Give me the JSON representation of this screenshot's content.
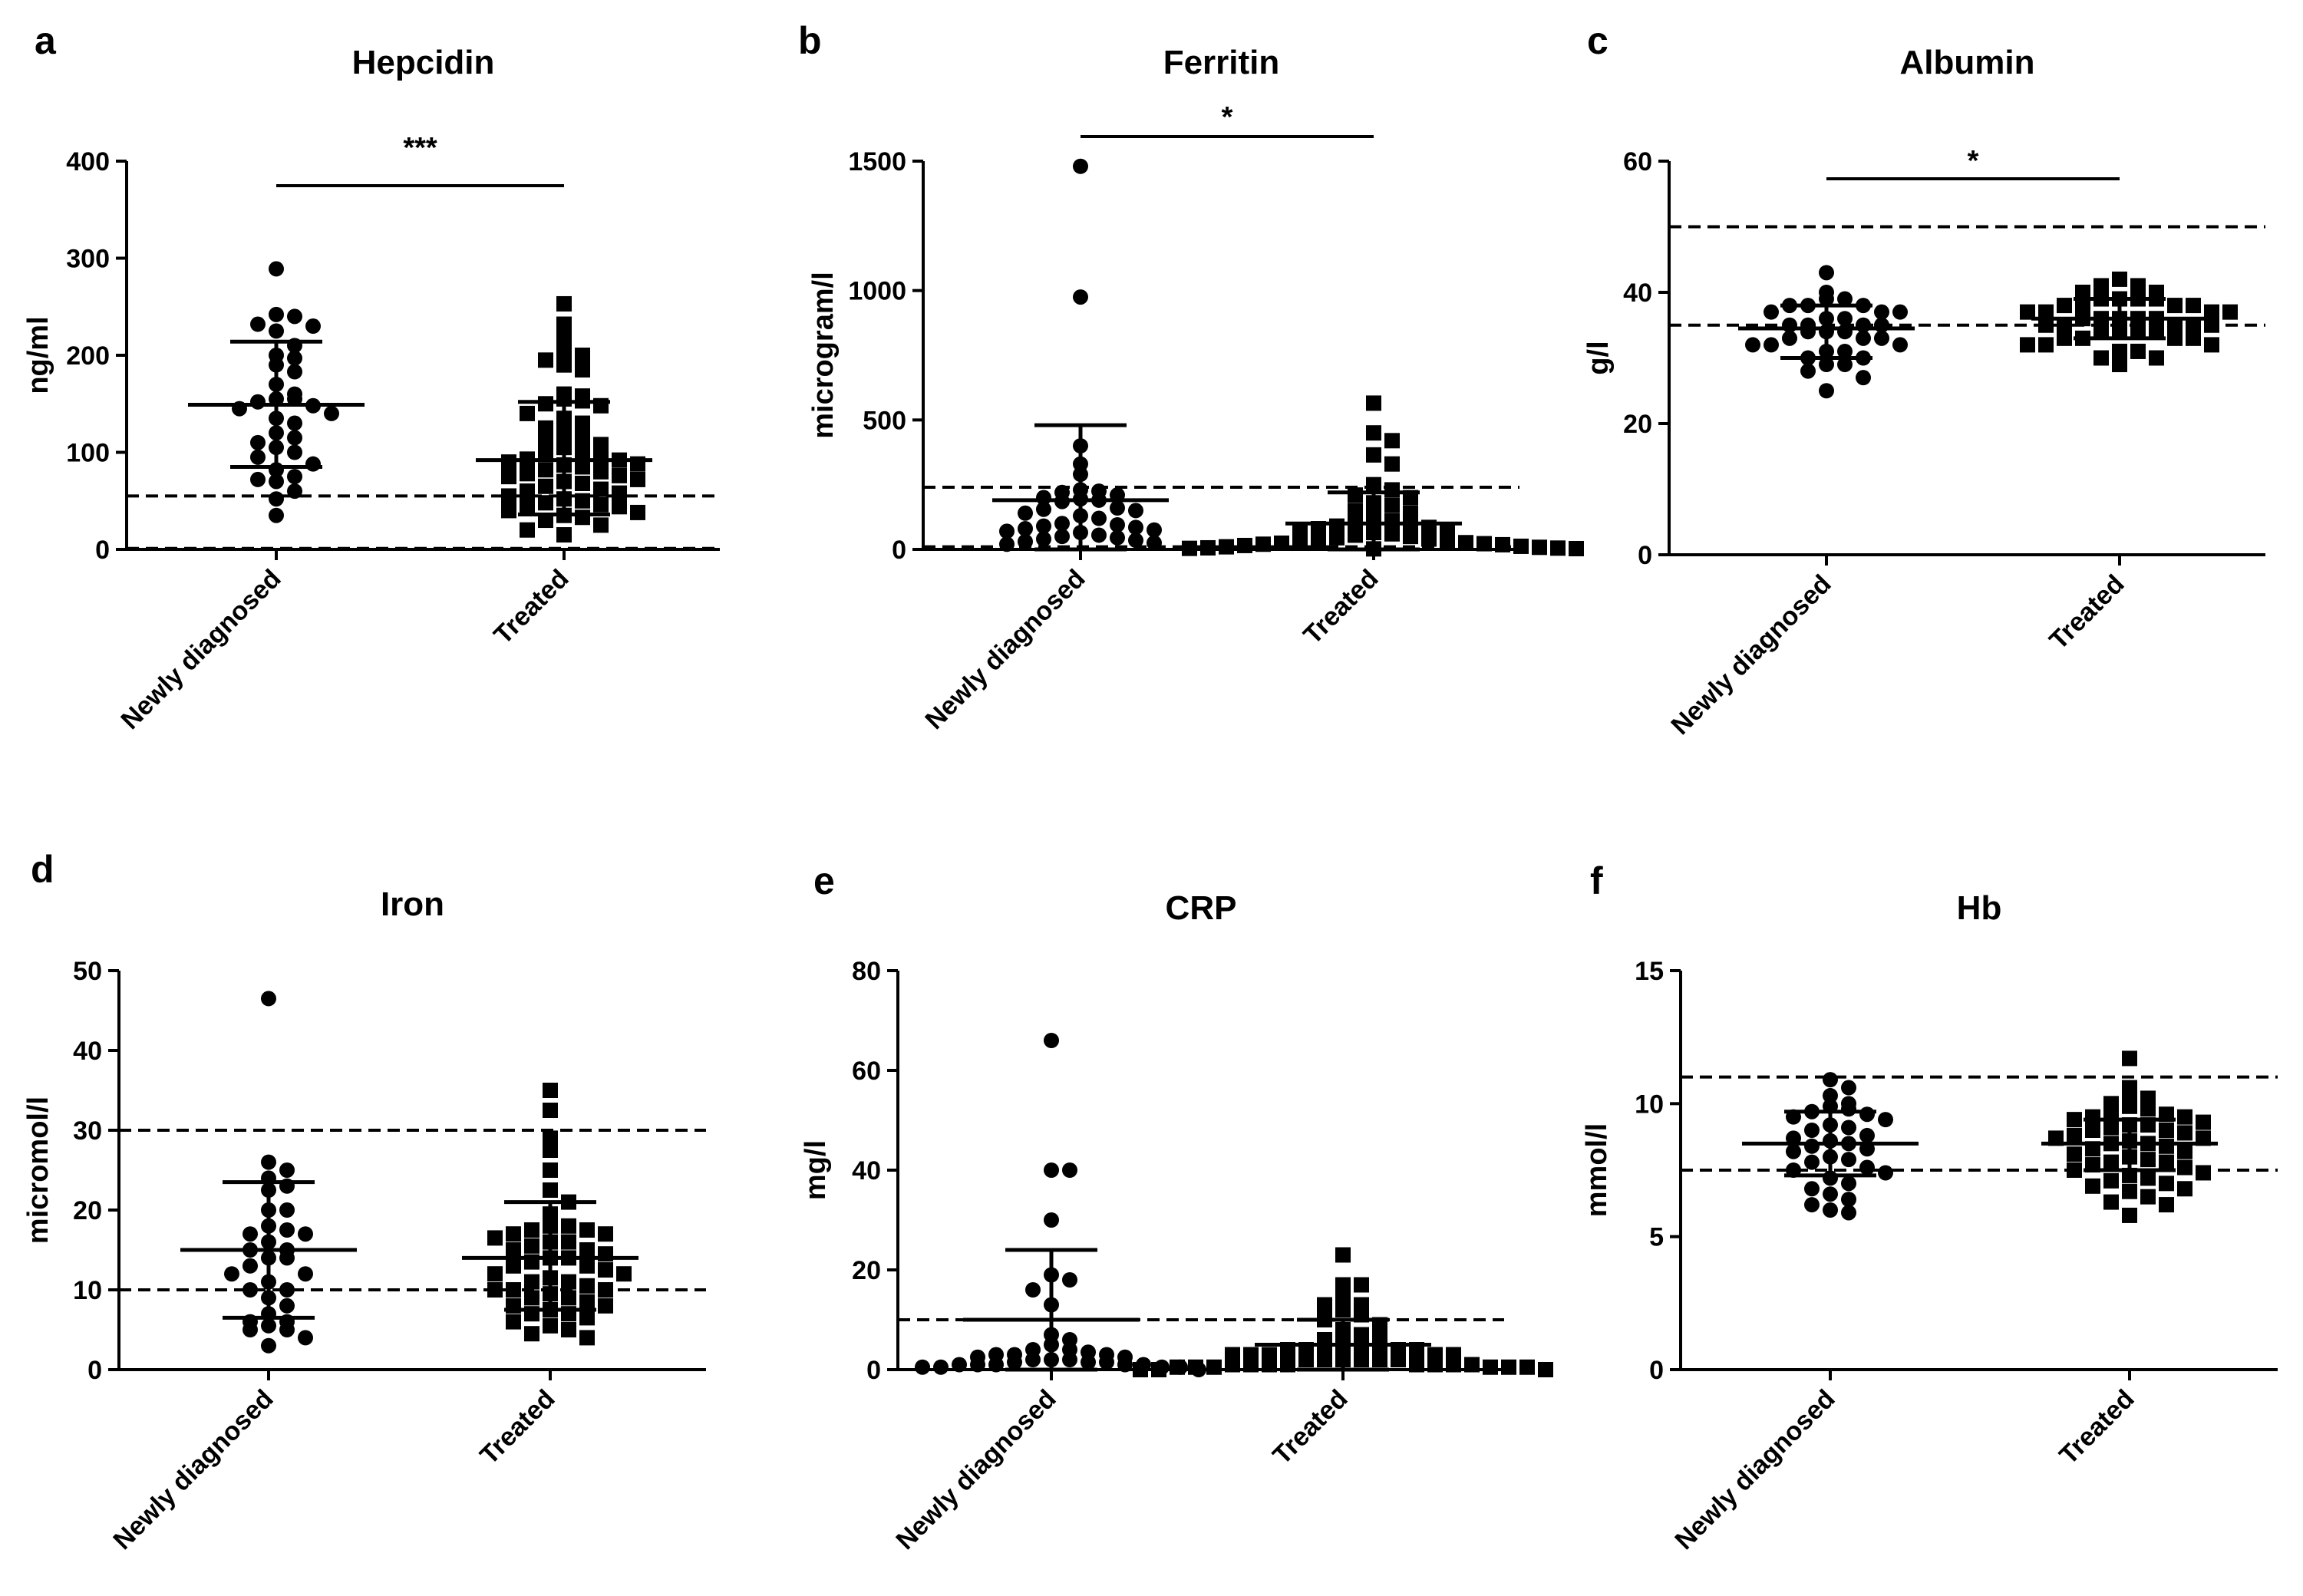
{
  "figure": {
    "colors": {
      "ink": "#000000",
      "background": "#ffffff"
    },
    "marker_shapes": {
      "group_1": "circle",
      "group_2": "square"
    }
  },
  "chart_data": [
    {
      "letter": "a",
      "type": "scatter",
      "title": "Hepcidin",
      "ylabel": "ng/ml",
      "ylim": [
        0,
        400
      ],
      "yticks": [
        0,
        100,
        200,
        300,
        400
      ],
      "categories": [
        "Newly diagnosed",
        "Treated"
      ],
      "reference_lines": [
        1,
        55
      ],
      "significance": "***",
      "groups": [
        {
          "name": "Newly diagnosed",
          "marker": "circle",
          "mean": 149,
          "sd_low": 85,
          "sd_high": 214,
          "values": [
            289,
            242,
            240,
            232,
            230,
            225,
            210,
            200,
            197,
            190,
            183,
            170,
            160,
            155,
            155,
            152,
            148,
            145,
            140,
            135,
            130,
            120,
            115,
            110,
            105,
            100,
            95,
            88,
            82,
            75,
            72,
            70,
            60,
            52,
            35
          ]
        },
        {
          "name": "Treated",
          "marker": "square",
          "mean": 92,
          "sd_low": 36,
          "sd_high": 152,
          "values": [
            253,
            232,
            220,
            205,
            200,
            195,
            190,
            185,
            160,
            158,
            155,
            153,
            150,
            148,
            140,
            135,
            130,
            125,
            120,
            115,
            110,
            108,
            105,
            100,
            98,
            95,
            93,
            92,
            90,
            88,
            87,
            85,
            82,
            80,
            78,
            76,
            75,
            72,
            70,
            68,
            65,
            62,
            60,
            58,
            55,
            52,
            50,
            48,
            46,
            45,
            44,
            40,
            38,
            35,
            33,
            30,
            25,
            20,
            15
          ]
        }
      ]
    },
    {
      "letter": "b",
      "type": "scatter",
      "title": "Ferritin",
      "ylabel": "microgram/l",
      "ylim": [
        0,
        1500
      ],
      "yticks": [
        0,
        500,
        1000,
        1500
      ],
      "categories": [
        "Newly diagnosed",
        "Treated"
      ],
      "reference_lines": [
        10,
        240
      ],
      "significance": "*",
      "groups": [
        {
          "name": "Newly diagnosed",
          "marker": "circle",
          "mean": 190,
          "sd_low": 0,
          "sd_high": 480,
          "values": [
            1480,
            975,
            400,
            330,
            290,
            230,
            225,
            220,
            210,
            200,
            195,
            190,
            185,
            160,
            155,
            150,
            140,
            130,
            120,
            100,
            95,
            90,
            85,
            80,
            75,
            70,
            65,
            55,
            50,
            45,
            40,
            35,
            30,
            25,
            20
          ]
        },
        {
          "name": "Treated",
          "marker": "square",
          "mean": 100,
          "sd_low": 0,
          "sd_high": 220,
          "values": [
            565,
            450,
            420,
            365,
            330,
            250,
            230,
            210,
            200,
            180,
            170,
            150,
            140,
            130,
            110,
            100,
            95,
            90,
            85,
            80,
            75,
            70,
            65,
            60,
            55,
            50,
            45,
            40,
            35,
            30,
            28,
            26,
            24,
            22,
            20,
            18,
            15,
            12,
            10,
            8,
            6,
            5,
            4,
            3,
            2
          ]
        }
      ]
    },
    {
      "letter": "c",
      "type": "scatter",
      "title": "Albumin",
      "ylabel": "g/l",
      "ylim": [
        0,
        60
      ],
      "yticks": [
        0,
        20,
        40,
        60
      ],
      "categories": [
        "Newly diagnosed",
        "Treated"
      ],
      "reference_lines": [
        35,
        50
      ],
      "significance": "*",
      "groups": [
        {
          "name": "Newly diagnosed",
          "marker": "circle",
          "mean": 34.5,
          "sd_low": 30,
          "sd_high": 38,
          "values": [
            43,
            40,
            39,
            39,
            38,
            38,
            38,
            37,
            37,
            37,
            36,
            36,
            35,
            35,
            35,
            35,
            34,
            34,
            34,
            33,
            33,
            33,
            32,
            32,
            32,
            31,
            31,
            30,
            30,
            29,
            29,
            28,
            27,
            25
          ]
        },
        {
          "name": "Treated",
          "marker": "square",
          "mean": 36,
          "sd_low": 33,
          "sd_high": 39,
          "values": [
            42,
            41,
            41,
            40,
            40,
            39,
            39,
            39,
            39,
            38,
            38,
            38,
            38,
            37,
            37,
            37,
            37,
            36,
            36,
            36,
            36,
            36,
            35,
            35,
            35,
            35,
            35,
            34,
            34,
            34,
            34,
            33,
            33,
            33,
            33,
            32,
            32,
            32,
            31,
            31,
            30,
            30,
            29
          ]
        }
      ]
    },
    {
      "letter": "d",
      "type": "scatter",
      "title": "Iron",
      "ylabel": "micromol/l",
      "ylim": [
        0,
        50
      ],
      "yticks": [
        0,
        10,
        20,
        30,
        40,
        50
      ],
      "categories": [
        "Newly diagnosed",
        "Treated"
      ],
      "reference_lines": [
        10,
        30
      ],
      "significance": "",
      "groups": [
        {
          "name": "Newly diagnosed",
          "marker": "circle",
          "mean": 15,
          "sd_low": 6.5,
          "sd_high": 23.5,
          "values": [
            46.5,
            26,
            25,
            24,
            23,
            22.5,
            20,
            20,
            18,
            17.5,
            17,
            17,
            16,
            15,
            15,
            14,
            14,
            13,
            12,
            12,
            11,
            10,
            10,
            9,
            8,
            7,
            6,
            6,
            5.5,
            5,
            5,
            4,
            3
          ]
        },
        {
          "name": "Treated",
          "marker": "square",
          "mean": 14,
          "sd_low": 7.5,
          "sd_high": 21,
          "values": [
            35,
            32.5,
            29,
            27.5,
            25,
            22.5,
            21,
            19.5,
            18,
            18,
            17.5,
            17.5,
            17,
            17,
            16.5,
            16,
            16,
            15.5,
            15,
            15,
            14.5,
            14,
            14,
            13.5,
            13,
            13,
            12.5,
            12,
            12,
            11.5,
            11,
            11,
            10.5,
            10,
            10,
            10,
            9.5,
            9,
            9,
            8.5,
            8,
            8,
            7.5,
            7,
            7,
            6.5,
            6,
            5.5,
            5,
            4.5,
            4
          ]
        }
      ]
    },
    {
      "letter": "e",
      "type": "scatter",
      "title": "CRP",
      "ylabel": "mg/l",
      "ylim": [
        0,
        80
      ],
      "yticks": [
        0,
        20,
        40,
        60,
        80
      ],
      "categories": [
        "Newly diagnosed",
        "Treated"
      ],
      "reference_lines": [
        10
      ],
      "significance": "",
      "groups": [
        {
          "name": "Newly diagnosed",
          "marker": "circle",
          "mean": 10,
          "sd_low": 0,
          "sd_high": 24,
          "values": [
            66,
            40,
            40,
            30,
            19,
            18,
            16,
            13,
            7,
            6,
            5,
            4,
            4,
            3.5,
            3,
            3,
            3,
            2.5,
            2.5,
            2,
            2,
            2,
            1.5,
            1.5,
            1.5,
            1,
            1,
            1,
            1,
            1,
            0.5,
            0.5,
            0.5,
            0.5,
            0
          ]
        },
        {
          "name": "Treated",
          "marker": "square",
          "mean": 5,
          "sd_low": 0,
          "sd_high": 10,
          "values": [
            23,
            17,
            17,
            14,
            13,
            13,
            12,
            11,
            10,
            9,
            8,
            7,
            6,
            6,
            5,
            5,
            5,
            4,
            4,
            4,
            4,
            4,
            3,
            3,
            3,
            3,
            3,
            2,
            2,
            2,
            2,
            2,
            2,
            1,
            1,
            1,
            1,
            1,
            1,
            1,
            1,
            0.5,
            0.5,
            0.5,
            0.5,
            0.5,
            0.5,
            0,
            0,
            0
          ]
        }
      ]
    },
    {
      "letter": "f",
      "type": "scatter",
      "title": "Hb",
      "ylabel": "mmol/l",
      "ylim": [
        0,
        15
      ],
      "yticks": [
        0,
        5,
        10,
        15
      ],
      "categories": [
        "Newly diagnosed",
        "Treated"
      ],
      "reference_lines": [
        7.5,
        11
      ],
      "significance": "",
      "groups": [
        {
          "name": "Newly diagnosed",
          "marker": "circle",
          "mean": 8.5,
          "sd_low": 7.3,
          "sd_high": 9.7,
          "values": [
            10.9,
            10.6,
            10.3,
            10,
            9.9,
            9.8,
            9.7,
            9.6,
            9.5,
            9.4,
            9.2,
            9.1,
            9,
            8.8,
            8.7,
            8.6,
            8.5,
            8.4,
            8.3,
            8.2,
            8,
            7.9,
            7.8,
            7.6,
            7.5,
            7.4,
            7.2,
            7,
            6.8,
            6.6,
            6.4,
            6.2,
            6,
            5.9
          ]
        },
        {
          "name": "Treated",
          "marker": "square",
          "mean": 8.5,
          "sd_low": 7.5,
          "sd_high": 9.4,
          "values": [
            11.7,
            10.6,
            10.4,
            10.2,
            10,
            9.9,
            9.8,
            9.7,
            9.6,
            9.5,
            9.5,
            9.4,
            9.3,
            9.2,
            9.2,
            9.1,
            9,
            9,
            8.9,
            8.8,
            8.7,
            8.7,
            8.6,
            8.5,
            8.5,
            8.4,
            8.3,
            8.2,
            8.1,
            8,
            7.9,
            7.8,
            7.8,
            7.7,
            7.6,
            7.5,
            7.4,
            7.3,
            7.2,
            7.1,
            7,
            6.9,
            6.8,
            6.7,
            6.5,
            6.3,
            6.2,
            5.8
          ]
        }
      ]
    }
  ]
}
